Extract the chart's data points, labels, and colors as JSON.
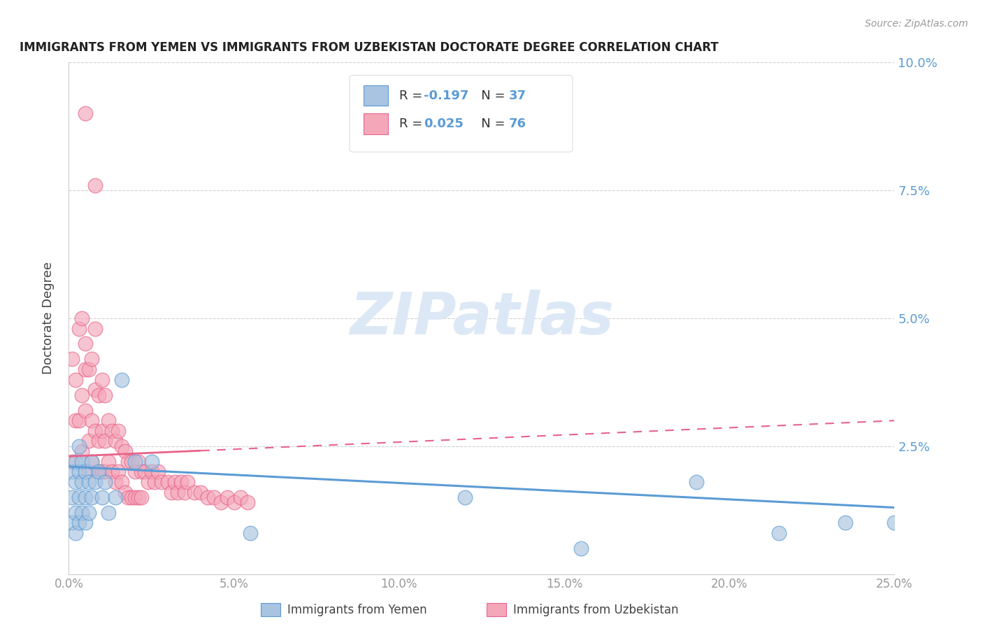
{
  "title": "IMMIGRANTS FROM YEMEN VS IMMIGRANTS FROM UZBEKISTAN DOCTORATE DEGREE CORRELATION CHART",
  "source": "Source: ZipAtlas.com",
  "ylabel": "Doctorate Degree",
  "xlim": [
    0.0,
    0.25
  ],
  "ylim": [
    0.0,
    0.1
  ],
  "xticks": [
    0.0,
    0.05,
    0.1,
    0.15,
    0.2,
    0.25
  ],
  "yticks": [
    0.0,
    0.025,
    0.05,
    0.075,
    0.1
  ],
  "legend1_label": "R = -0.197   N = 37",
  "legend2_label": "R =  0.025   N = 76",
  "legend1_R": "-0.197",
  "legend1_N": "37",
  "legend2_R": "0.025",
  "legend2_N": "76",
  "color_yemen": "#a8c4e0",
  "color_uzbekistan": "#f4a7b9",
  "color_trend_yemen": "#5b9bd5",
  "color_trend_uzbekistan": "#e8638a",
  "background_color": "#ffffff",
  "watermark_color": "#dce8f5",
  "yemen_x": [
    0.001,
    0.001,
    0.001,
    0.002,
    0.002,
    0.002,
    0.002,
    0.003,
    0.003,
    0.003,
    0.003,
    0.004,
    0.004,
    0.004,
    0.005,
    0.005,
    0.005,
    0.006,
    0.006,
    0.007,
    0.007,
    0.008,
    0.009,
    0.01,
    0.011,
    0.012,
    0.014,
    0.016,
    0.02,
    0.025,
    0.055,
    0.12,
    0.155,
    0.19,
    0.215,
    0.235,
    0.25
  ],
  "yemen_y": [
    0.02,
    0.015,
    0.01,
    0.022,
    0.018,
    0.012,
    0.008,
    0.025,
    0.02,
    0.015,
    0.01,
    0.022,
    0.018,
    0.012,
    0.02,
    0.015,
    0.01,
    0.018,
    0.012,
    0.022,
    0.015,
    0.018,
    0.02,
    0.015,
    0.018,
    0.012,
    0.015,
    0.038,
    0.022,
    0.022,
    0.008,
    0.015,
    0.005,
    0.018,
    0.008,
    0.01,
    0.01
  ],
  "uzbekistan_x": [
    0.005,
    0.008,
    0.001,
    0.002,
    0.001,
    0.002,
    0.003,
    0.003,
    0.004,
    0.004,
    0.004,
    0.005,
    0.005,
    0.005,
    0.006,
    0.006,
    0.006,
    0.007,
    0.007,
    0.007,
    0.008,
    0.008,
    0.008,
    0.009,
    0.009,
    0.009,
    0.01,
    0.01,
    0.01,
    0.011,
    0.011,
    0.011,
    0.012,
    0.012,
    0.013,
    0.013,
    0.014,
    0.014,
    0.015,
    0.015,
    0.016,
    0.016,
    0.017,
    0.017,
    0.018,
    0.018,
    0.019,
    0.019,
    0.02,
    0.02,
    0.021,
    0.021,
    0.022,
    0.022,
    0.023,
    0.024,
    0.025,
    0.026,
    0.027,
    0.028,
    0.03,
    0.031,
    0.032,
    0.033,
    0.034,
    0.035,
    0.036,
    0.038,
    0.04,
    0.042,
    0.044,
    0.046,
    0.048,
    0.05,
    0.052,
    0.054
  ],
  "uzbekistan_y": [
    0.09,
    0.076,
    0.042,
    0.03,
    0.022,
    0.038,
    0.048,
    0.03,
    0.05,
    0.035,
    0.024,
    0.045,
    0.032,
    0.04,
    0.04,
    0.026,
    0.02,
    0.042,
    0.03,
    0.022,
    0.048,
    0.036,
    0.028,
    0.035,
    0.026,
    0.02,
    0.038,
    0.028,
    0.02,
    0.035,
    0.026,
    0.02,
    0.03,
    0.022,
    0.028,
    0.02,
    0.026,
    0.018,
    0.028,
    0.02,
    0.025,
    0.018,
    0.024,
    0.016,
    0.022,
    0.015,
    0.022,
    0.015,
    0.02,
    0.015,
    0.022,
    0.015,
    0.02,
    0.015,
    0.02,
    0.018,
    0.02,
    0.018,
    0.02,
    0.018,
    0.018,
    0.016,
    0.018,
    0.016,
    0.018,
    0.016,
    0.018,
    0.016,
    0.016,
    0.015,
    0.015,
    0.014,
    0.015,
    0.014,
    0.015,
    0.014
  ],
  "trend_solid_end_x": 0.04,
  "xtick_labels": [
    "0.0%",
    "5.0%",
    "10.0%",
    "15.0%",
    "20.0%",
    "25.0%"
  ],
  "ytick_labels_right": [
    "",
    "2.5%",
    "5.0%",
    "7.5%",
    "10.0%"
  ]
}
